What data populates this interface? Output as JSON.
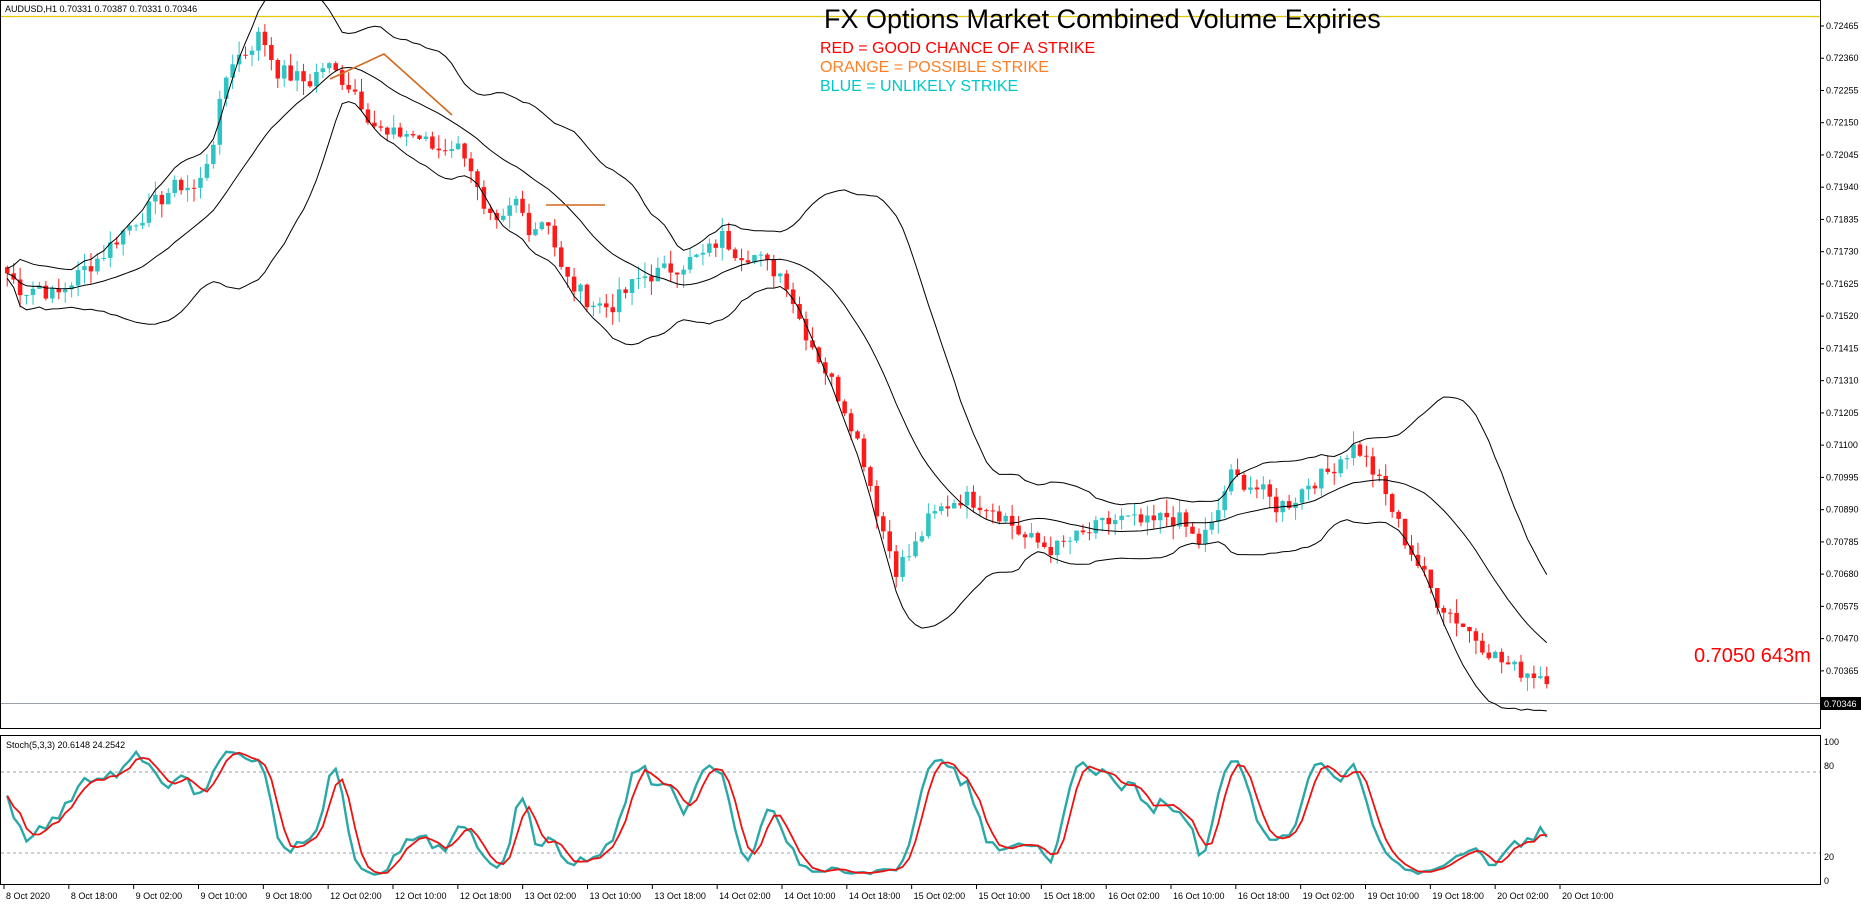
{
  "symbol_info": "AUDUSD,H1  0.70331 0.70387 0.70331 0.70346",
  "title": "FX Options Market Combined Volume Expiries",
  "legend": [
    {
      "text": "RED = GOOD CHANCE OF A STRIKE",
      "color": "#ff0000"
    },
    {
      "text": "ORANGE = POSSIBLE STRIKE",
      "color": "#ff7f27"
    },
    {
      "text": "BLUE = UNLIKELY STRIKE",
      "color": "#00c8c8"
    }
  ],
  "strike_label": {
    "text": "0.7050 643m",
    "color": "#ff0000"
  },
  "current_price_label": "0.70346",
  "colors": {
    "bull_candle": "#2ec4c4",
    "bear_candle": "#ff1a1a",
    "band_line": "#000000",
    "annotation_line": "#d2691e",
    "top_level_line": "#e8c800",
    "stoch_main": "#2aa8a8",
    "stoch_signal": "#ee1111"
  },
  "stoch_info": "Stoch(5,3,3) 20.6148 24.2542",
  "chart_data": [
    {
      "type": "candlestick",
      "ylim": [
        0.70205,
        0.7253
      ],
      "price_ticks": [
        "0.72465",
        "0.72360",
        "0.72255",
        "0.72150",
        "0.72045",
        "0.71940",
        "0.71835",
        "0.71730",
        "0.71625",
        "0.71520",
        "0.71415",
        "0.71310",
        "0.71205",
        "0.71100",
        "0.70995",
        "0.70890",
        "0.70785",
        "0.70680",
        "0.70575",
        "0.70470",
        "0.70365",
        "0.70260"
      ],
      "time_labels": [
        "8 Oct 2020",
        "8 Oct 18:00",
        "9 Oct 02:00",
        "9 Oct 10:00",
        "9 Oct 18:00",
        "12 Oct 02:00",
        "12 Oct 10:00",
        "12 Oct 18:00",
        "13 Oct 02:00",
        "13 Oct 10:00",
        "13 Oct 18:00",
        "14 Oct 02:00",
        "14 Oct 10:00",
        "14 Oct 18:00",
        "15 Oct 02:00",
        "15 Oct 10:00",
        "15 Oct 18:00",
        "16 Oct 02:00",
        "16 Oct 10:00",
        "16 Oct 18:00",
        "19 Oct 02:00",
        "19 Oct 10:00",
        "19 Oct 18:00",
        "20 Oct 02:00",
        "20 Oct 10:00"
      ],
      "close_path": [
        0.7166,
        0.716,
        0.7162,
        0.7158,
        0.7163,
        0.7168,
        0.7172,
        0.7178,
        0.7183,
        0.7187,
        0.7192,
        0.7195,
        0.7193,
        0.721,
        0.7235,
        0.7238,
        0.7244,
        0.7232,
        0.723,
        0.7228,
        0.7234,
        0.723,
        0.7225,
        0.7215,
        0.721,
        0.7212,
        0.721,
        0.7206,
        0.7208,
        0.7205,
        0.7185,
        0.718,
        0.719,
        0.718,
        0.7185,
        0.7165,
        0.716,
        0.7156,
        0.7155,
        0.716,
        0.7165,
        0.7166,
        0.7168,
        0.717,
        0.7172,
        0.7178,
        0.7173,
        0.7172,
        0.7168,
        0.7165,
        0.715,
        0.714,
        0.713,
        0.712,
        0.7105,
        0.7085,
        0.707,
        0.7075,
        0.7085,
        0.709,
        0.7093,
        0.7092,
        0.709,
        0.7086,
        0.708,
        0.7078,
        0.7076,
        0.7079,
        0.7081,
        0.7084,
        0.7086,
        0.7085,
        0.7084,
        0.7087,
        0.7085,
        0.7078,
        0.7084,
        0.71,
        0.7098,
        0.7095,
        0.709,
        0.7092,
        0.7098,
        0.71,
        0.7106,
        0.711,
        0.7102,
        0.7092,
        0.708,
        0.707,
        0.706,
        0.7055,
        0.705,
        0.7045,
        0.704,
        0.7037,
        0.7036,
        0.7035
      ],
      "stoch_levels": [
        20,
        80
      ]
    }
  ]
}
